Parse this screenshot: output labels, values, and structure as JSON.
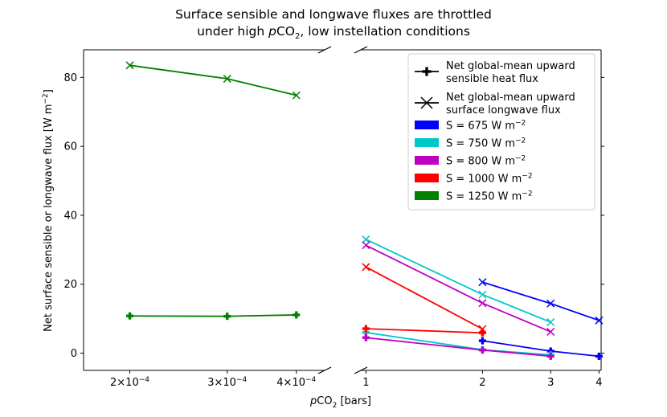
{
  "chart_data": {
    "type": "line",
    "title_line1": "Surface sensible and longwave fluxes are throttled",
    "title_line2_pre": "under high ",
    "title_line2_mid": "CO",
    "title_line2_post": ", low instellation conditions",
    "xlabel_pre": "CO",
    "xlabel_post": " [bars]",
    "ylabel_pre": "Net surface sensible or longwave flux [W m",
    "ylabel_sup": "−2",
    "ylabel_post": "]",
    "ylim": [
      -5,
      88
    ],
    "yticks": [
      0,
      20,
      40,
      60,
      80
    ],
    "xscale": "log",
    "left_panel": {
      "xlim": [
        0.000165,
        0.00045
      ],
      "xticks": [
        {
          "value": 0.0002,
          "mant": "2",
          "exp": "−4"
        },
        {
          "value": 0.0003,
          "mant": "3",
          "exp": "−4"
        },
        {
          "value": 0.0004,
          "mant": "4",
          "exp": "−4"
        }
      ]
    },
    "right_panel": {
      "xlim": [
        0.97,
        4.05
      ],
      "xticks": [
        {
          "value": 1,
          "label": "1"
        },
        {
          "value": 2,
          "label": "2"
        },
        {
          "value": 3,
          "label": "3"
        },
        {
          "value": 4,
          "label": "4"
        }
      ]
    },
    "legend": {
      "placement": "top-right",
      "marker_entries": [
        {
          "marker": "plus",
          "line1": "Net global-mean upward",
          "line2": "sensible heat flux"
        },
        {
          "marker": "x",
          "line1": "Net global-mean upward",
          "line2": "surface longwave flux"
        }
      ],
      "value_prefix": "S = ",
      "unit_pre": " W m",
      "unit_sup": "−2"
    },
    "series": [
      {
        "value": "675",
        "color": "#0000ff",
        "sensible": {
          "x": [
            2,
            3,
            4
          ],
          "y": [
            3.6,
            0.6,
            -0.9
          ]
        },
        "longwave": {
          "x": [
            2,
            3,
            4
          ],
          "y": [
            20.6,
            14.4,
            9.5
          ]
        }
      },
      {
        "value": "750",
        "color": "#00c8c8",
        "sensible": {
          "x": [
            1,
            2,
            3
          ],
          "y": [
            6.0,
            1.0,
            -0.5
          ]
        },
        "longwave": {
          "x": [
            1,
            2,
            3
          ],
          "y": [
            33.0,
            17.0,
            9.0
          ]
        }
      },
      {
        "value": "800",
        "color": "#c000c0",
        "sensible": {
          "x": [
            1,
            2,
            3
          ],
          "y": [
            4.5,
            0.9,
            -0.9
          ]
        },
        "longwave": {
          "x": [
            1,
            2,
            3
          ],
          "y": [
            31.3,
            14.5,
            6.2
          ]
        }
      },
      {
        "value": "1000",
        "color": "#ff0000",
        "sensible": {
          "x": [
            1,
            2
          ],
          "y": [
            7.1,
            5.9
          ]
        },
        "longwave": {
          "x": [
            1,
            2
          ],
          "y": [
            25.0,
            7.0
          ]
        }
      },
      {
        "value": "1250",
        "color": "#008000",
        "sensible": {
          "x": [
            0.0002,
            0.0003,
            0.0004
          ],
          "y": [
            10.8,
            10.7,
            11.1
          ]
        },
        "longwave": {
          "x": [
            0.0002,
            0.0003,
            0.0004
          ],
          "y": [
            83.5,
            79.6,
            74.8
          ]
        }
      }
    ]
  }
}
